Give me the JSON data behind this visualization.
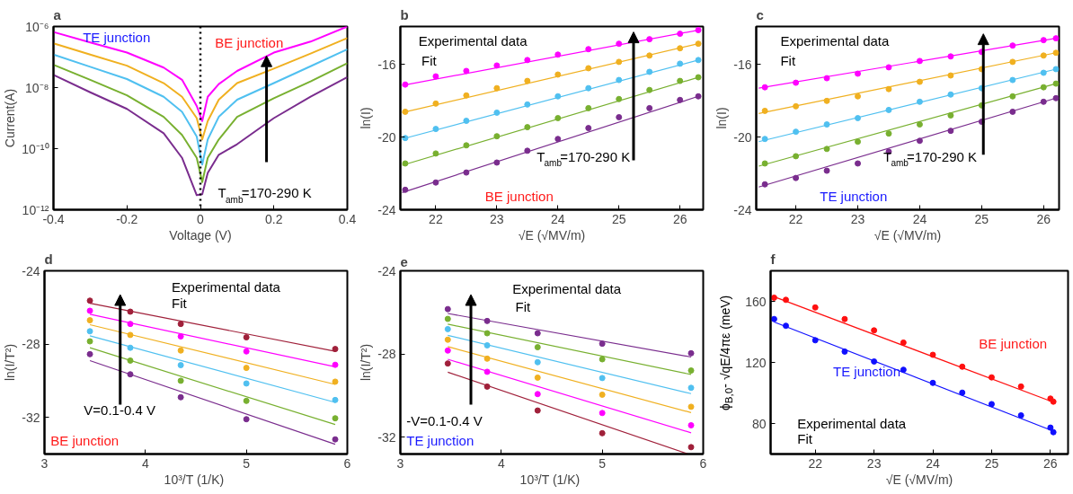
{
  "chart_data": [
    {
      "type": "line",
      "title": "a",
      "xlabel": "Voltage (V)",
      "ylabel": "Current(A)",
      "log": "y",
      "x": [
        -0.4,
        -0.3,
        -0.2,
        -0.1,
        -0.05,
        -0.01,
        0.005,
        0.02,
        0.05,
        0.1,
        0.2,
        0.3,
        0.4
      ],
      "xlim": [
        -0.4,
        0.4
      ],
      "xticks": [
        -0.4,
        -0.2,
        0,
        0.2,
        0.4
      ],
      "ylim": [
        1e-12,
        1e-06
      ],
      "yticks": [
        {
          "value": 1e-12,
          "label": "10⁻¹²"
        },
        {
          "value": 1e-10,
          "label": "10⁻¹⁰"
        },
        {
          "value": 1e-08,
          "label": "10⁻⁸"
        },
        {
          "value": 1e-06,
          "label": "10⁻⁶"
        }
      ],
      "series": [
        {
          "color": "#ff00ff",
          "values": [
            6.6e-07,
            3e-07,
            1.4e-07,
            4.5e-08,
            1.8e-08,
            2.5e-09,
            8e-10,
            5e-09,
            1.3e-08,
            3.5e-08,
            1.4e-07,
            3.2e-07,
            1e-06
          ]
        },
        {
          "color": "#f0b020",
          "values": [
            2.8e-07,
            1.2e-07,
            5.2e-08,
            1.4e-08,
            5e-09,
            1e-09,
            2e-10,
            8e-10,
            4e-09,
            1.4e-08,
            4.2e-08,
            1.3e-07,
            4.2e-07
          ]
        },
        {
          "color": "#50c0f0",
          "values": [
            1.2e-07,
            4.8e-08,
            1.9e-08,
            5e-09,
            1.6e-09,
            2.5e-10,
            3e-11,
            2e-10,
            1.1e-09,
            4e-09,
            1.4e-08,
            5e-08,
            1.8e-07
          ]
        },
        {
          "color": "#78b030",
          "values": [
            5.6e-08,
            1.8e-08,
            5.6e-09,
            1.1e-09,
            2.8e-10,
            5e-11,
            8e-12,
            5e-11,
            2e-10,
            1.1e-09,
            4.5e-09,
            1.6e-08,
            6.3e-08
          ]
        },
        {
          "color": "#7a2d8e",
          "values": [
            2.6e-08,
            7e-09,
            2e-09,
            3.2e-10,
            5e-11,
            3e-12,
            3.2e-12,
            1.6e-11,
            6.3e-11,
            1.4e-10,
            1e-09,
            5e-09,
            2.2e-08
          ]
        }
      ],
      "ref_lines": [
        {
          "axis": "x",
          "value": 0,
          "color": "#000000",
          "line_style": "dotted"
        }
      ],
      "annotations": [
        "TE junction",
        "BE junction",
        "T$_{amb}$=170-290 K"
      ]
    },
    {
      "type": "scatter",
      "title": "b",
      "xlabel": "√E (√MV/m)",
      "ylabel": "ln(I)",
      "x": [
        21.5,
        22,
        22.5,
        23,
        23.5,
        24,
        24.5,
        25,
        25.5,
        26,
        26.3
      ],
      "xlim": [
        21.42,
        26.38
      ],
      "xticks": [
        22,
        23,
        24,
        25,
        26
      ],
      "ylim": [
        -24,
        -13.9
      ],
      "yticks": [
        -24,
        -20,
        -16
      ],
      "series": [
        {
          "color": "#ff00ff",
          "values": [
            -17.1,
            -16.65,
            -16.35,
            -16.05,
            -15.75,
            -15.45,
            -15.15,
            -14.85,
            -14.6,
            -14.3,
            -14.1
          ]
        },
        {
          "color": "#f0b020",
          "values": [
            -18.6,
            -18.15,
            -17.7,
            -17.3,
            -16.9,
            -16.55,
            -16.2,
            -15.85,
            -15.5,
            -15.1,
            -14.85
          ]
        },
        {
          "color": "#50c0f0",
          "values": [
            -20.05,
            -19.55,
            -19.1,
            -18.65,
            -18.2,
            -17.75,
            -17.3,
            -16.85,
            -16.4,
            -15.95,
            -15.75
          ]
        },
        {
          "color": "#78b030",
          "values": [
            -21.45,
            -20.9,
            -20.45,
            -19.95,
            -19.45,
            -18.95,
            -18.4,
            -17.9,
            -17.4,
            -16.9,
            -16.7
          ]
        },
        {
          "color": "#7a2d8e",
          "values": [
            -22.9,
            -22.5,
            -21.95,
            -21.4,
            -20.75,
            -20.1,
            -19.5,
            -18.9,
            -18.4,
            -17.95,
            -17.75
          ]
        },
        {
          "type": "line",
          "color": "#ff00ff",
          "x": [
            21.45,
            26.3
          ],
          "values": [
            -17.15,
            -14.1
          ]
        },
        {
          "type": "line",
          "color": "#f0b020",
          "x": [
            21.45,
            26.3
          ],
          "values": [
            -18.65,
            -14.85
          ]
        },
        {
          "type": "line",
          "color": "#50c0f0",
          "x": [
            21.45,
            26.3
          ],
          "values": [
            -20.1,
            -15.75
          ]
        },
        {
          "type": "line",
          "color": "#78b030",
          "x": [
            21.45,
            26.3
          ],
          "values": [
            -21.55,
            -16.7
          ]
        },
        {
          "type": "line",
          "color": "#7a2d8e",
          "x": [
            21.45,
            26.3
          ],
          "values": [
            -23.05,
            -17.75
          ]
        }
      ],
      "annotations": [
        "Experimental data",
        "Fit",
        "T$_{amb}$=170-290 K",
        "BE junction"
      ]
    },
    {
      "type": "scatter",
      "title": "c",
      "xlabel": "√E (√MV/m)",
      "ylabel": "ln(I)",
      "x": [
        21.5,
        22,
        22.5,
        23,
        23.5,
        24,
        24.5,
        25,
        25.5,
        26,
        26.2
      ],
      "xlim": [
        21.36,
        26.25
      ],
      "xticks": [
        22,
        23,
        24,
        25,
        26
      ],
      "ylim": [
        -24,
        -13.9
      ],
      "yticks": [
        -24,
        -20,
        -16
      ],
      "series": [
        {
          "color": "#ff00ff",
          "values": [
            -17.25,
            -17.0,
            -16.75,
            -16.5,
            -16.15,
            -15.8,
            -15.55,
            -15.3,
            -14.95,
            -14.65,
            -14.55
          ]
        },
        {
          "color": "#f0b020",
          "values": [
            -18.55,
            -18.3,
            -18.0,
            -17.75,
            -17.35,
            -16.95,
            -16.6,
            -16.25,
            -15.85,
            -15.5,
            -15.35
          ]
        },
        {
          "color": "#50c0f0",
          "values": [
            -20.1,
            -19.7,
            -19.3,
            -18.95,
            -18.5,
            -18.05,
            -17.65,
            -17.3,
            -16.85,
            -16.45,
            -16.25
          ]
        },
        {
          "color": "#78b030",
          "values": [
            -21.45,
            -21.05,
            -20.65,
            -20.25,
            -19.8,
            -19.3,
            -18.8,
            -18.25,
            -17.75,
            -17.25,
            -17.05
          ]
        },
        {
          "color": "#7a2d8e",
          "values": [
            -22.6,
            -22.25,
            -21.85,
            -21.45,
            -20.8,
            -20.2,
            -19.65,
            -19.15,
            -18.6,
            -18.05,
            -17.85
          ]
        },
        {
          "type": "line",
          "color": "#ff00ff",
          "x": [
            21.4,
            26.2
          ],
          "values": [
            -17.3,
            -14.55
          ]
        },
        {
          "type": "line",
          "color": "#f0b020",
          "x": [
            21.4,
            26.2
          ],
          "values": [
            -18.7,
            -15.35
          ]
        },
        {
          "type": "line",
          "color": "#50c0f0",
          "x": [
            21.4,
            26.2
          ],
          "values": [
            -20.25,
            -16.25
          ]
        },
        {
          "type": "line",
          "color": "#78b030",
          "x": [
            21.4,
            26.2
          ],
          "values": [
            -21.6,
            -17.05
          ]
        },
        {
          "type": "line",
          "color": "#7a2d8e",
          "x": [
            21.4,
            26.2
          ],
          "values": [
            -22.75,
            -17.85
          ]
        }
      ],
      "annotations": [
        "Experimental data",
        "Fit",
        "T$_{amb}$=170-290 K",
        "TE junction"
      ]
    },
    {
      "type": "scatter",
      "title": "d",
      "xlabel": "10³/T  (1/K)",
      "ylabel": "ln(I/T²)",
      "x": [
        3.45,
        3.85,
        4.35,
        5.0,
        5.88
      ],
      "xlim": [
        3,
        6
      ],
      "xticks": [
        3,
        4,
        5,
        6
      ],
      "ylim": [
        -34,
        -24
      ],
      "yticks": [
        -32,
        -28,
        -24
      ],
      "series": [
        {
          "color": "#a0203a",
          "values": [
            -25.63,
            -26.23,
            -26.9,
            -27.63,
            -28.27
          ]
        },
        {
          "color": "#ff00ff",
          "values": [
            -26.18,
            -26.9,
            -27.58,
            -28.4,
            -29.13
          ]
        },
        {
          "color": "#f0b020",
          "values": [
            -26.7,
            -27.5,
            -28.35,
            -29.3,
            -30.05
          ]
        },
        {
          "color": "#50c0f0",
          "values": [
            -27.3,
            -28.2,
            -29.15,
            -30.15,
            -31.05
          ]
        },
        {
          "color": "#78b030",
          "values": [
            -27.85,
            -28.9,
            -30.0,
            -31.1,
            -32.05
          ]
        },
        {
          "color": "#7a2d8e",
          "values": [
            -28.55,
            -29.65,
            -30.9,
            -32.1,
            -33.2
          ]
        },
        {
          "type": "line",
          "color": "#a0203a",
          "x": [
            3.45,
            5.88
          ],
          "values": [
            -25.77,
            -28.39
          ]
        },
        {
          "type": "line",
          "color": "#ff00ff",
          "x": [
            3.45,
            5.88
          ],
          "values": [
            -26.37,
            -29.24
          ]
        },
        {
          "type": "line",
          "color": "#f0b020",
          "x": [
            3.45,
            5.88
          ],
          "values": [
            -26.94,
            -30.2
          ]
        },
        {
          "type": "line",
          "color": "#50c0f0",
          "x": [
            3.45,
            5.88
          ],
          "values": [
            -27.55,
            -31.18
          ]
        },
        {
          "type": "line",
          "color": "#78b030",
          "x": [
            3.45,
            5.88
          ],
          "values": [
            -28.2,
            -32.39
          ]
        },
        {
          "type": "line",
          "color": "#7a2d8e",
          "x": [
            3.45,
            5.88
          ],
          "values": [
            -28.9,
            -33.47
          ]
        }
      ],
      "annotations": [
        "Experimental data",
        "Fit",
        "V=0.1-0.4 V",
        "BE junction"
      ]
    },
    {
      "type": "scatter",
      "title": "e",
      "xlabel": "10³/T  (1/K)",
      "ylabel": "ln(I/T²)",
      "x": [
        3.47,
        3.86,
        4.36,
        5.0,
        5.88
      ],
      "xlim": [
        3,
        6
      ],
      "xticks": [
        3,
        4,
        5,
        6
      ],
      "ylim": [
        -32.8,
        -24
      ],
      "yticks": [
        -32,
        -28,
        -24
      ],
      "series": [
        {
          "color": "#7a2d8e",
          "values": [
            -25.84,
            -26.41,
            -27.0,
            -27.5,
            -27.96
          ]
        },
        {
          "color": "#78b030",
          "values": [
            -26.31,
            -27.0,
            -27.67,
            -28.25,
            -28.79
          ]
        },
        {
          "color": "#50c0f0",
          "values": [
            -26.8,
            -27.58,
            -28.39,
            -29.15,
            -29.62
          ]
        },
        {
          "color": "#f0b020",
          "values": [
            -27.31,
            -28.22,
            -29.13,
            -29.95,
            -30.53
          ]
        },
        {
          "color": "#ff00ff",
          "values": [
            -27.83,
            -28.85,
            -29.92,
            -30.83,
            -31.42
          ]
        },
        {
          "color": "#a0203a",
          "values": [
            -28.45,
            -29.56,
            -30.71,
            -31.8,
            -32.47
          ]
        },
        {
          "type": "line",
          "color": "#7a2d8e",
          "x": [
            3.47,
            5.88
          ],
          "values": [
            -26.05,
            -28.14
          ]
        },
        {
          "type": "line",
          "color": "#78b030",
          "x": [
            3.47,
            5.88
          ],
          "values": [
            -26.56,
            -28.98
          ]
        },
        {
          "type": "line",
          "color": "#50c0f0",
          "x": [
            3.47,
            5.88
          ],
          "values": [
            -27.1,
            -29.9
          ]
        },
        {
          "type": "line",
          "color": "#f0b020",
          "x": [
            3.47,
            5.88
          ],
          "values": [
            -27.64,
            -30.81
          ]
        },
        {
          "type": "line",
          "color": "#ff00ff",
          "x": [
            3.47,
            5.88
          ],
          "values": [
            -28.25,
            -31.78
          ]
        },
        {
          "type": "line",
          "color": "#a0203a",
          "x": [
            3.47,
            5.85
          ],
          "values": [
            -28.87,
            -32.8
          ]
        }
      ],
      "annotations": [
        "Experimental data",
        "Fit",
        "-V=0.1-0.4 V",
        "TE junction"
      ]
    },
    {
      "type": "scatter",
      "title": "f",
      "xlabel": "√E (√MV/m)",
      "ylabel": "ϕ$_{B,0}$- √qE/4πε (meV)",
      "x": [
        21.3,
        21.5,
        22,
        22.5,
        23,
        23.5,
        24,
        24.5,
        25,
        25.5,
        26,
        26.05
      ],
      "xlim": [
        21.24,
        26.3
      ],
      "xticks": [
        22,
        23,
        24,
        25,
        26
      ],
      "ylim": [
        60,
        180
      ],
      "yticks": [
        80,
        120,
        160
      ],
      "series": [
        {
          "color": "#ff1010",
          "values": [
            162.4,
            161,
            156,
            148.4,
            141,
            133,
            125,
            117.2,
            110.2,
            104.2,
            96.3,
            94.3
          ]
        },
        {
          "color": "#1010ff",
          "values": [
            148.4,
            144,
            134.5,
            127.1,
            120.6,
            115.2,
            106.6,
            100.2,
            92.7,
            85.3,
            77.3,
            74.3
          ]
        },
        {
          "type": "line",
          "color": "#ff1010",
          "x": [
            21.3,
            26.05
          ],
          "values": [
            163,
            94
          ]
        },
        {
          "type": "line",
          "color": "#1010ff",
          "x": [
            21.3,
            26.05
          ],
          "values": [
            146.5,
            75
          ]
        }
      ],
      "annotations": [
        "Experimental data",
        "Fit",
        "BE junction",
        "TE junction"
      ]
    }
  ]
}
